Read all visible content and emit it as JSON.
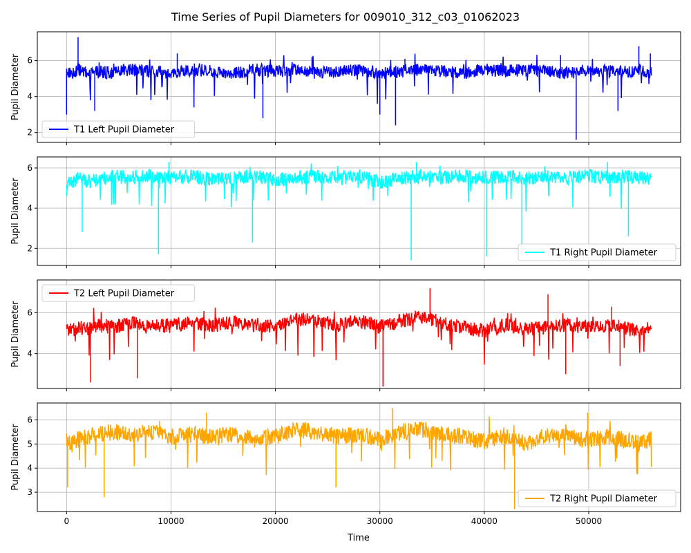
{
  "figure": {
    "title": "Time Series of Pupil Diameters for 009010_312_c03_01062023",
    "xlabel": "Time"
  },
  "chart_data": [
    {
      "type": "line",
      "title": "",
      "xlabel": "",
      "ylabel": "Pupil Diameter",
      "xlim": [
        -2800,
        58800
      ],
      "ylim": [
        1.45,
        7.6
      ],
      "xticks": [
        0,
        10000,
        20000,
        30000,
        40000,
        50000
      ],
      "yticks": [
        2,
        4,
        6
      ],
      "grid": true,
      "legend_position": "lower-left",
      "series": [
        {
          "name": "T1 Left Pupil Diameter",
          "color": "#0000ff",
          "x": [
            0,
            500,
            1200,
            2000,
            3000,
            4500,
            6000,
            8000,
            10000,
            12000,
            14000,
            16000,
            18000,
            20000,
            22000,
            24000,
            26000,
            28000,
            30000,
            32000,
            34000,
            36000,
            38000,
            40000,
            42000,
            44000,
            46000,
            48000,
            50000,
            52000,
            54000,
            55000,
            56000
          ],
          "values": [
            5.4,
            5.3,
            5.5,
            5.2,
            5.4,
            5.3,
            5.5,
            5.4,
            5.3,
            5.5,
            5.4,
            5.3,
            5.5,
            5.4,
            5.5,
            5.3,
            5.4,
            5.5,
            5.3,
            5.4,
            5.5,
            5.4,
            5.3,
            5.5,
            5.4,
            5.5,
            5.4,
            5.3,
            5.5,
            5.4,
            5.4,
            5.5,
            5.3
          ],
          "spikes": [
            [
              0,
              3.0
            ],
            [
              1100,
              7.3
            ],
            [
              2700,
              3.2
            ],
            [
              10600,
              6.4
            ],
            [
              12200,
              3.4
            ],
            [
              18800,
              2.8
            ],
            [
              23500,
              6.2
            ],
            [
              30000,
              3.0
            ],
            [
              31500,
              2.4
            ],
            [
              32400,
              6.1
            ],
            [
              47300,
              6.3
            ],
            [
              48800,
              1.6
            ],
            [
              52800,
              3.2
            ],
            [
              54800,
              6.8
            ],
            [
              55900,
              6.4
            ]
          ]
        }
      ]
    },
    {
      "type": "line",
      "title": "",
      "xlabel": "",
      "ylabel": "Pupil Diameter",
      "xlim": [
        -2800,
        58800
      ],
      "ylim": [
        1.15,
        6.55
      ],
      "xticks": [
        0,
        10000,
        20000,
        30000,
        40000,
        50000
      ],
      "yticks": [
        2,
        4,
        6
      ],
      "grid": true,
      "legend_position": "lower-right",
      "series": [
        {
          "name": "T1 Right Pupil Diameter",
          "color": "#00ffff",
          "x": [
            0,
            500,
            1200,
            2000,
            3000,
            4500,
            6000,
            8000,
            10000,
            12000,
            14000,
            16000,
            18000,
            20000,
            22000,
            24000,
            26000,
            28000,
            30000,
            32000,
            34000,
            36000,
            38000,
            40000,
            42000,
            44000,
            46000,
            48000,
            50000,
            52000,
            54000,
            55000,
            56000
          ],
          "values": [
            5.2,
            5.3,
            5.5,
            5.3,
            5.4,
            5.6,
            5.5,
            5.6,
            5.5,
            5.6,
            5.4,
            5.5,
            5.6,
            5.4,
            5.5,
            5.6,
            5.5,
            5.6,
            5.3,
            5.5,
            5.6,
            5.5,
            5.6,
            5.5,
            5.6,
            5.5,
            5.6,
            5.5,
            5.6,
            5.5,
            5.6,
            5.5,
            5.4
          ],
          "spikes": [
            [
              1500,
              2.8
            ],
            [
              8800,
              1.7
            ],
            [
              9800,
              6.3
            ],
            [
              17800,
              2.3
            ],
            [
              33000,
              1.4
            ],
            [
              33500,
              6.3
            ],
            [
              40200,
              1.6
            ],
            [
              43600,
              1.7
            ],
            [
              51800,
              6.3
            ],
            [
              53800,
              2.6
            ]
          ]
        }
      ]
    },
    {
      "type": "line",
      "title": "",
      "xlabel": "",
      "ylabel": "Pupil Diameter",
      "xlim": [
        -2800,
        58800
      ],
      "ylim": [
        2.3,
        7.6
      ],
      "xticks": [
        0,
        10000,
        20000,
        30000,
        40000,
        50000
      ],
      "yticks": [
        4,
        6
      ],
      "grid": true,
      "legend_position": "top-left",
      "series": [
        {
          "name": "T2 Left Pupil Diameter",
          "color": "#ff0000",
          "x": [
            0,
            500,
            1200,
            2000,
            3000,
            4500,
            6000,
            8000,
            10000,
            12000,
            14000,
            16000,
            18000,
            20000,
            22000,
            24000,
            26000,
            28000,
            30000,
            32000,
            34000,
            36000,
            38000,
            40000,
            42000,
            44000,
            46000,
            48000,
            50000,
            52000,
            54000,
            55000,
            56000
          ],
          "values": [
            5.2,
            5.1,
            5.3,
            5.2,
            5.4,
            5.3,
            5.5,
            5.3,
            5.4,
            5.5,
            5.4,
            5.5,
            5.4,
            5.3,
            5.7,
            5.6,
            5.4,
            5.6,
            5.3,
            5.6,
            5.8,
            5.5,
            5.3,
            5.1,
            5.4,
            5.2,
            5.3,
            5.4,
            5.3,
            5.4,
            5.2,
            5.1,
            5.3
          ],
          "spikes": [
            [
              2300,
              2.6
            ],
            [
              6800,
              2.8
            ],
            [
              30300,
              2.4
            ],
            [
              34800,
              7.2
            ],
            [
              46100,
              6.9
            ],
            [
              47800,
              3.0
            ],
            [
              52200,
              6.3
            ],
            [
              53000,
              3.4
            ]
          ]
        }
      ]
    },
    {
      "type": "line",
      "title": "",
      "xlabel": "Time",
      "ylabel": "Pupil Diameter",
      "xlim": [
        -2800,
        58800
      ],
      "ylim": [
        2.2,
        6.7
      ],
      "xticks": [
        0,
        10000,
        20000,
        30000,
        40000,
        50000
      ],
      "yticks": [
        3,
        4,
        5,
        6
      ],
      "grid": true,
      "legend_position": "lower-right",
      "series": [
        {
          "name": "T2 Right Pupil Diameter",
          "color": "#ffa500",
          "x": [
            0,
            500,
            1200,
            2000,
            3000,
            4500,
            6000,
            8000,
            10000,
            12000,
            14000,
            16000,
            18000,
            20000,
            22000,
            24000,
            26000,
            28000,
            30000,
            32000,
            34000,
            36000,
            38000,
            40000,
            42000,
            44000,
            46000,
            48000,
            50000,
            52000,
            54000,
            55000,
            56000
          ],
          "values": [
            5.2,
            5.0,
            5.2,
            5.3,
            5.4,
            5.5,
            5.4,
            5.5,
            5.3,
            5.4,
            5.3,
            5.4,
            5.2,
            5.3,
            5.6,
            5.5,
            5.3,
            5.4,
            5.2,
            5.5,
            5.6,
            5.4,
            5.3,
            5.1,
            5.3,
            5.0,
            5.4,
            5.3,
            5.2,
            5.3,
            5.1,
            5.0,
            5.2
          ],
          "spikes": [
            [
              100,
              3.2
            ],
            [
              3600,
              2.8
            ],
            [
              13400,
              6.3
            ],
            [
              25800,
              3.2
            ],
            [
              31200,
              6.5
            ],
            [
              42900,
              2.3
            ],
            [
              49900,
              6.3
            ]
          ]
        }
      ]
    }
  ]
}
